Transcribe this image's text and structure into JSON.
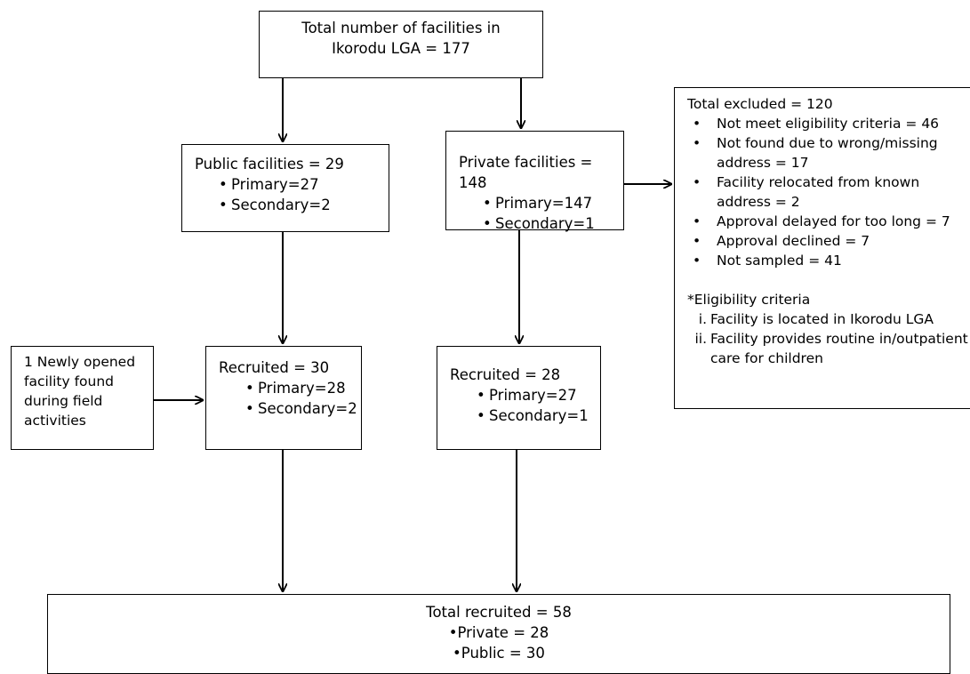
{
  "total_box": {
    "line1": "Total number of facilities in",
    "line2": "Ikorodu LGA = 177"
  },
  "public_box": {
    "title": "Public facilities = 29",
    "items": [
      "Primary=27",
      "Secondary=2"
    ]
  },
  "private_box": {
    "title": "Private facilities = 148",
    "items": [
      "Primary=147",
      "Secondary=1"
    ]
  },
  "excluded_box": {
    "title": "Total excluded = 120",
    "items": [
      "Not meet eligibility criteria = 46",
      "Not found due to wrong/missing address = 17",
      "Facility relocated from known address = 2",
      "Approval delayed for too long = 7",
      "Approval declined = 7",
      "Not sampled = 41"
    ],
    "criteria_title": "*Eligibility criteria",
    "criteria": [
      {
        "num": "i.",
        "text": "Facility is located in Ikorodu LGA"
      },
      {
        "num": "ii.",
        "text": "Facility provides routine in/outpatient care for children"
      }
    ]
  },
  "newly_box": {
    "text": "1 Newly opened facility found during field activities"
  },
  "recruited_public": {
    "title": "Recruited = 30",
    "items": [
      "Primary=28",
      "Secondary=2"
    ]
  },
  "recruited_private": {
    "title": "Recruited = 28",
    "items": [
      "Primary=27",
      "Secondary=1"
    ]
  },
  "final_box": {
    "title": "Total recruited = 58",
    "items": [
      "Private = 28",
      "Public = 30"
    ]
  }
}
